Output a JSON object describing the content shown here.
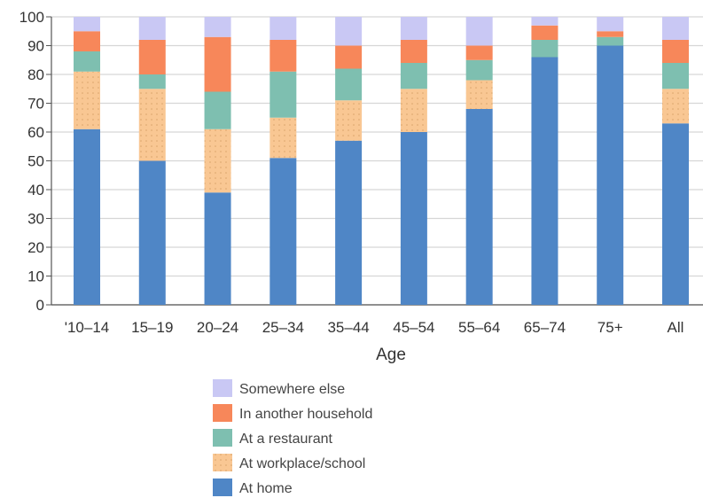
{
  "chart_data": {
    "type": "bar",
    "stacked": true,
    "title": "",
    "xlabel": "Age",
    "ylabel": "",
    "ylim": [
      0,
      100
    ],
    "yticks": [
      0,
      10,
      20,
      30,
      40,
      50,
      60,
      70,
      80,
      90,
      100
    ],
    "grid": true,
    "legend_position": "bottom",
    "categories": [
      "'10–14",
      "15–19",
      "20–24",
      "25–34",
      "35–44",
      "45–54",
      "55–64",
      "65–74",
      "75+",
      "All"
    ],
    "series": [
      {
        "name": "At home",
        "color": "#4f86c6",
        "pattern": "solid",
        "values": [
          61,
          50,
          39,
          51,
          57,
          60,
          68,
          86,
          90,
          63
        ]
      },
      {
        "name": "At workplace/school",
        "color": "#f9c793",
        "pattern": "dotted",
        "values": [
          20,
          25,
          22,
          14,
          14,
          15,
          10,
          0,
          0,
          12
        ]
      },
      {
        "name": "At a restaurant",
        "color": "#7ebfb0",
        "pattern": "solid",
        "values": [
          7,
          5,
          13,
          16,
          11,
          9,
          7,
          6,
          3,
          9
        ]
      },
      {
        "name": "In another household",
        "color": "#f7875a",
        "pattern": "solid",
        "values": [
          7,
          12,
          19,
          11,
          8,
          8,
          5,
          5,
          2,
          8
        ]
      },
      {
        "name": "Somewhere else",
        "color": "#c9c8f4",
        "pattern": "solid",
        "values": [
          5,
          8,
          7,
          8,
          10,
          8,
          10,
          3,
          5,
          8
        ]
      }
    ],
    "legend_order": [
      "Somewhere else",
      "In another household",
      "At a restaurant",
      "At workplace/school",
      "At home"
    ]
  }
}
